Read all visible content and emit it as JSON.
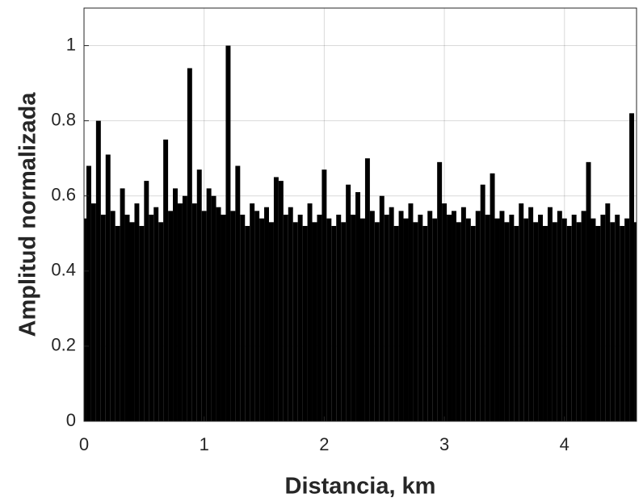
{
  "chart_data": {
    "type": "spikes",
    "xlabel": "Distancia, km",
    "ylabel": "Amplitud normalizada",
    "color": "#000000",
    "grid": true,
    "xlim": [
      0,
      4.6
    ],
    "ylim": [
      0,
      1.1
    ],
    "xticks": [
      0,
      1,
      2,
      3,
      4
    ],
    "yticks": [
      0,
      0.2,
      0.4,
      0.6,
      0.8,
      1
    ],
    "x": [
      0,
      0.04,
      0.08,
      0.12,
      0.16,
      0.2,
      0.24,
      0.28,
      0.32,
      0.36,
      0.4,
      0.44,
      0.48,
      0.52,
      0.56,
      0.6,
      0.64,
      0.68,
      0.72,
      0.76,
      0.8,
      0.84,
      0.88,
      0.92,
      0.96,
      1,
      1.04,
      1.08,
      1.12,
      1.16,
      1.2,
      1.24,
      1.28,
      1.32,
      1.36,
      1.4,
      1.44,
      1.48,
      1.52,
      1.56,
      1.6,
      1.64,
      1.68,
      1.72,
      1.76,
      1.8,
      1.84,
      1.88,
      1.92,
      1.96,
      2,
      2.04,
      2.08,
      2.12,
      2.16,
      2.2,
      2.24,
      2.28,
      2.32,
      2.36,
      2.4,
      2.44,
      2.48,
      2.52,
      2.56,
      2.6,
      2.64,
      2.68,
      2.72,
      2.76,
      2.8,
      2.84,
      2.88,
      2.92,
      2.96,
      3,
      3.04,
      3.08,
      3.12,
      3.16,
      3.2,
      3.24,
      3.28,
      3.32,
      3.36,
      3.4,
      3.44,
      3.48,
      3.52,
      3.56,
      3.6,
      3.64,
      3.68,
      3.72,
      3.76,
      3.8,
      3.84,
      3.88,
      3.92,
      3.96,
      4,
      4.04,
      4.08,
      4.12,
      4.16,
      4.2,
      4.24,
      4.28,
      4.32,
      4.36,
      4.4,
      4.44,
      4.48,
      4.52,
      4.56,
      4.6
    ],
    "values": [
      0.54,
      0.68,
      0.58,
      0.8,
      0.55,
      0.71,
      0.56,
      0.52,
      0.62,
      0.55,
      0.53,
      0.58,
      0.52,
      0.64,
      0.55,
      0.57,
      0.53,
      0.75,
      0.56,
      0.62,
      0.58,
      0.6,
      0.94,
      0.58,
      0.67,
      0.56,
      0.62,
      0.6,
      0.57,
      0.55,
      1,
      0.56,
      0.68,
      0.55,
      0.52,
      0.58,
      0.56,
      0.54,
      0.57,
      0.53,
      0.65,
      0.64,
      0.55,
      0.57,
      0.53,
      0.55,
      0.52,
      0.58,
      0.53,
      0.55,
      0.67,
      0.54,
      0.52,
      0.55,
      0.53,
      0.63,
      0.55,
      0.61,
      0.54,
      0.7,
      0.56,
      0.53,
      0.6,
      0.55,
      0.57,
      0.52,
      0.56,
      0.54,
      0.58,
      0.53,
      0.55,
      0.52,
      0.56,
      0.54,
      0.69,
      0.58,
      0.55,
      0.56,
      0.53,
      0.57,
      0.54,
      0.52,
      0.56,
      0.63,
      0.55,
      0.66,
      0.54,
      0.56,
      0.53,
      0.55,
      0.52,
      0.58,
      0.54,
      0.57,
      0.53,
      0.55,
      0.52,
      0.57,
      0.53,
      0.56,
      0.54,
      0.52,
      0.55,
      0.53,
      0.56,
      0.69,
      0.54,
      0.52,
      0.55,
      0.58,
      0.53,
      0.55,
      0.52,
      0.54,
      0.82,
      0.53
    ]
  }
}
